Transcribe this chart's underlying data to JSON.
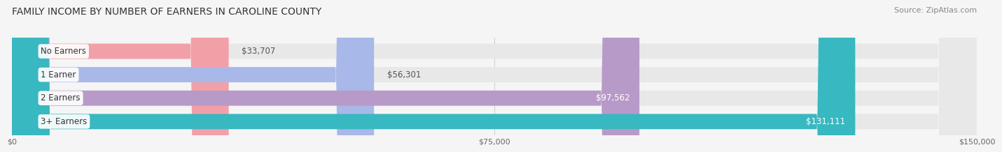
{
  "title": "FAMILY INCOME BY NUMBER OF EARNERS IN CAROLINE COUNTY",
  "source": "Source: ZipAtlas.com",
  "categories": [
    "No Earners",
    "1 Earner",
    "2 Earners",
    "3+ Earners"
  ],
  "values": [
    33707,
    56301,
    97562,
    131111
  ],
  "labels": [
    "$33,707",
    "$56,301",
    "$97,562",
    "$131,111"
  ],
  "bar_colors": [
    "#f2a0a8",
    "#a8b8e8",
    "#b89ac8",
    "#38b8c0"
  ],
  "label_colors": [
    "#555555",
    "#555555",
    "#ffffff",
    "#ffffff"
  ],
  "xlim": [
    0,
    150000
  ],
  "xticks": [
    0,
    75000,
    150000
  ],
  "xticklabels": [
    "$0",
    "$75,000",
    "$150,000"
  ],
  "bar_bg_color": "#e8e8e8",
  "title_fontsize": 10,
  "source_fontsize": 8,
  "bar_height": 0.65,
  "fig_bg_color": "#f5f5f5"
}
